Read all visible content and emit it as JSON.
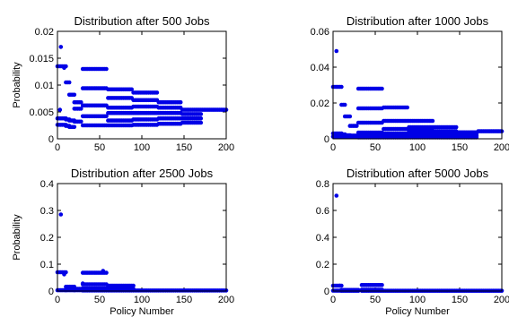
{
  "figure": {
    "marker_color": "#0000e6"
  },
  "chart_data": [
    {
      "type": "scatter",
      "title": "Distribution after 500 Jobs",
      "xlabel": "",
      "ylabel": "Probability",
      "xlim": [
        0,
        200
      ],
      "ylim": [
        0,
        0.02
      ],
      "xticks": [
        "0",
        "50",
        "100",
        "150",
        "200"
      ],
      "yticks": [
        "0",
        "0.005",
        "0.01",
        "0.015",
        "0.02"
      ],
      "generator": {
        "spacing": 2,
        "tail_start": 172,
        "tail_value": 0.0054,
        "clusters": [
          {
            "x": [
              0,
              10
            ],
            "levels": [
              0.0038,
              0.0026,
              0.0135
            ]
          },
          {
            "x": [
              10,
              14
            ],
            "levels": [
              0.0036,
              0.0024,
              0.0105
            ]
          },
          {
            "x": [
              14,
              20
            ],
            "levels": [
              0.0034,
              0.0022,
              0.0082
            ]
          },
          {
            "x": [
              20,
              28
            ],
            "levels": [
              0.0032,
              0.0056,
              0.0068
            ]
          },
          {
            "x": [
              30,
              58
            ],
            "levels": [
              0.0025,
              0.0042,
              0.0062,
              0.0094,
              0.013
            ]
          },
          {
            "x": [
              60,
              88
            ],
            "levels": [
              0.0025,
              0.0034,
              0.0048,
              0.0058,
              0.0076,
              0.0092
            ]
          },
          {
            "x": [
              90,
              118
            ],
            "levels": [
              0.0026,
              0.0036,
              0.0048,
              0.006,
              0.0072,
              0.0086
            ]
          },
          {
            "x": [
              120,
              146
            ],
            "levels": [
              0.0028,
              0.0038,
              0.0048,
              0.0058,
              0.0068
            ]
          },
          {
            "x": [
              148,
              170
            ],
            "levels": [
              0.003,
              0.0038,
              0.0046,
              0.0054
            ]
          }
        ],
        "extra_points": [
          [
            4,
            0.0171
          ],
          [
            8,
            0.0132
          ],
          [
            3,
            0.0054
          ]
        ]
      }
    },
    {
      "type": "scatter",
      "title": "Distribution after 1000 Jobs",
      "xlabel": "",
      "ylabel": "",
      "xlim": [
        0,
        200
      ],
      "ylim": [
        0,
        0.06
      ],
      "xticks": [
        "0",
        "50",
        "100",
        "150",
        "200"
      ],
      "yticks": [
        "0",
        "0.02",
        "0.04",
        "0.06"
      ],
      "generator": {
        "spacing": 2,
        "tail_start": 172,
        "tail_value": 0.0042,
        "clusters": [
          {
            "x": [
              0,
              10
            ],
            "levels": [
              0.0012,
              0.003,
              0.029
            ]
          },
          {
            "x": [
              10,
              14
            ],
            "levels": [
              0.001,
              0.0025,
              0.019
            ]
          },
          {
            "x": [
              14,
              20
            ],
            "levels": [
              0.001,
              0.002,
              0.0125
            ]
          },
          {
            "x": [
              20,
              28
            ],
            "levels": [
              0.001,
              0.0018,
              0.0072
            ]
          },
          {
            "x": [
              30,
              58
            ],
            "levels": [
              0.0008,
              0.0015,
              0.0035,
              0.009,
              0.017,
              0.028
            ]
          },
          {
            "x": [
              60,
              88
            ],
            "levels": [
              0.0008,
              0.0016,
              0.003,
              0.0055,
              0.01,
              0.0175
            ]
          },
          {
            "x": [
              90,
              118
            ],
            "levels": [
              0.0008,
              0.0016,
              0.0028,
              0.0045,
              0.0065,
              0.01
            ]
          },
          {
            "x": [
              120,
              146
            ],
            "levels": [
              0.0008,
              0.0016,
              0.0028,
              0.0042,
              0.0065
            ]
          },
          {
            "x": [
              148,
              170
            ],
            "levels": [
              0.0008,
              0.0016,
              0.0026,
              0.0036
            ]
          }
        ],
        "extra_points": [
          [
            4,
            0.049
          ],
          [
            2,
            0.0015
          ]
        ]
      }
    },
    {
      "type": "scatter",
      "title": "Distribution after 2500 Jobs",
      "xlabel": "Policy Number",
      "ylabel": "Probability",
      "xlim": [
        0,
        200
      ],
      "ylim": [
        0,
        0.4
      ],
      "xticks": [
        "0",
        "50",
        "100",
        "150",
        "200"
      ],
      "yticks": [
        "0",
        "0.1",
        "0.2",
        "0.3",
        "0.4"
      ],
      "generator": {
        "spacing": 2,
        "tail_start": 92,
        "tail_value": 0.002,
        "clusters": [
          {
            "x": [
              0,
              10
            ],
            "levels": [
              0.003,
              0.07
            ]
          },
          {
            "x": [
              10,
              20
            ],
            "levels": [
              0.003,
              0.016
            ]
          },
          {
            "x": [
              20,
              28
            ],
            "levels": [
              0.003,
              0.008
            ]
          },
          {
            "x": [
              30,
              58
            ],
            "levels": [
              0.002,
              0.01,
              0.025,
              0.068
            ]
          },
          {
            "x": [
              60,
              90
            ],
            "levels": [
              0.002,
              0.008,
              0.02
            ]
          }
        ],
        "extra_points": [
          [
            4,
            0.285
          ],
          [
            8,
            0.062
          ],
          [
            30,
            0.028
          ],
          [
            54,
            0.075
          ]
        ]
      }
    },
    {
      "type": "scatter",
      "title": "Distribution after 5000 Jobs",
      "xlabel": "Policy Number",
      "ylabel": "",
      "xlim": [
        0,
        200
      ],
      "ylim": [
        0,
        0.8
      ],
      "xticks": [
        "0",
        "50",
        "100",
        "150",
        "200"
      ],
      "yticks": [
        "0",
        "0.2",
        "0.4",
        "0.6",
        "0.8"
      ],
      "generator": {
        "spacing": 2,
        "tail_start": 60,
        "tail_value": 0.002,
        "clusters": [
          {
            "x": [
              0,
              10
            ],
            "levels": [
              0.003,
              0.04
            ]
          },
          {
            "x": [
              10,
              30
            ],
            "levels": [
              0.002,
              0.008
            ]
          },
          {
            "x": [
              34,
              58
            ],
            "levels": [
              0.002,
              0.01,
              0.045
            ]
          }
        ],
        "extra_points": [
          [
            4,
            0.71
          ],
          [
            8,
            0.04
          ]
        ]
      }
    }
  ]
}
